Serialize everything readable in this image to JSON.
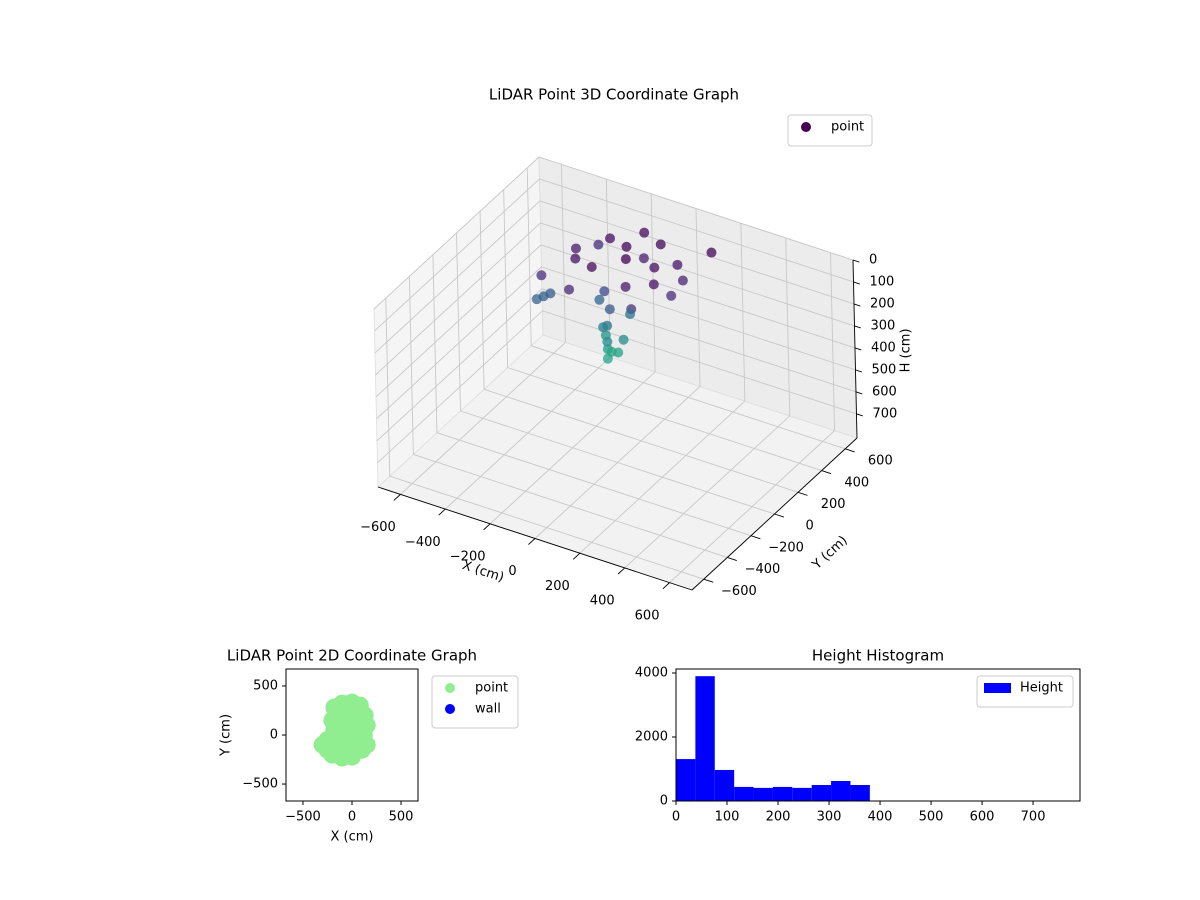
{
  "chart_data": [
    {
      "type": "scatter3d",
      "title": "LiDAR Point 3D Coordinate Graph",
      "xlabel": "X (cm)",
      "ylabel": "Y (cm)",
      "zlabel": "H (cm)",
      "xlim": [
        -700,
        700
      ],
      "ylim": [
        -700,
        700
      ],
      "zlim": [
        810,
        0
      ],
      "xticks": [
        {
          "value": -600,
          "label": "−600"
        },
        {
          "value": -400,
          "label": "−400"
        },
        {
          "value": -200,
          "label": "−200"
        },
        0,
        200,
        400,
        600
      ],
      "yticks": [
        {
          "value": -600,
          "label": "−600"
        },
        {
          "value": -400,
          "label": "−400"
        },
        {
          "value": -200,
          "label": "−200"
        },
        0,
        200,
        400,
        600
      ],
      "zticks": [
        0,
        100,
        200,
        300,
        400,
        500,
        600,
        700
      ],
      "grid": true,
      "cmap": "viridis",
      "legend": "upper right",
      "series": [
        {
          "name": "point",
          "color": "#440154",
          "x": [
            -300,
            -250,
            -200,
            -150,
            -100,
            -50,
            0,
            50,
            100,
            150,
            -350,
            -200,
            -100,
            0,
            100,
            200,
            -280,
            -50,
            50,
            150,
            -150,
            -100,
            -200,
            -80,
            -130,
            -170,
            -120,
            -90,
            -180,
            -140,
            -110,
            -150,
            -130,
            -400,
            -380,
            -360
          ],
          "y": [
            250,
            150,
            350,
            100,
            300,
            200,
            400,
            250,
            350,
            300,
            50,
            0,
            450,
            100,
            150,
            450,
            400,
            350,
            50,
            200,
            200,
            150,
            250,
            280,
            180,
            220,
            160,
            240,
            260,
            200,
            230,
            250,
            180,
            100,
            120,
            140
          ],
          "z": [
            60,
            40,
            30,
            20,
            10,
            0,
            15,
            30,
            50,
            80,
            100,
            90,
            20,
            60,
            40,
            10,
            110,
            70,
            120,
            100,
            180,
            220,
            260,
            300,
            320,
            360,
            380,
            400,
            420,
            440,
            460,
            480,
            470,
            250,
            240,
            230
          ]
        }
      ]
    },
    {
      "type": "scatter",
      "title": "LiDAR Point 2D Coordinate Graph",
      "xlabel": "X (cm)",
      "ylabel": "Y (cm)",
      "xlim": [
        -673,
        673
      ],
      "ylim": [
        -673,
        673
      ],
      "xticks": [
        {
          "value": -500,
          "label": "−500"
        },
        0,
        500
      ],
      "yticks": [
        {
          "value": -500,
          "label": "−500"
        },
        0,
        500
      ],
      "legend": "outside",
      "series": [
        {
          "name": "point",
          "color": "#90ee90",
          "x": [
            -300,
            -250,
            -200,
            -100,
            0,
            100,
            150,
            120,
            150,
            130,
            80,
            0,
            -100,
            -180,
            -200,
            -180,
            -250,
            0,
            -50,
            50,
            -100,
            50,
            -50,
            0,
            -100
          ],
          "y": [
            -100,
            -150,
            -200,
            -230,
            -220,
            -150,
            -100,
            0,
            100,
            200,
            300,
            330,
            320,
            280,
            150,
            50,
            -50,
            0,
            100,
            150,
            0,
            -100,
            200,
            250,
            -100
          ]
        },
        {
          "name": "wall",
          "color": "#0000ff",
          "x": [],
          "y": []
        }
      ]
    },
    {
      "type": "histogram",
      "title": "Height Histogram",
      "name": "Height",
      "color": "#0000ff",
      "bins": [
        0,
        38,
        76,
        114,
        152,
        190,
        228,
        266,
        304,
        342,
        380
      ],
      "values": [
        1310,
        3900,
        970,
        440,
        410,
        440,
        410,
        500,
        625,
        500
      ],
      "xlim": [
        0,
        792
      ],
      "ylim": [
        0,
        4125
      ],
      "xticks": [
        0,
        100,
        200,
        300,
        400,
        500,
        600,
        700
      ],
      "yticks": [
        0,
        2000,
        4000
      ],
      "legend": "upper right"
    }
  ]
}
